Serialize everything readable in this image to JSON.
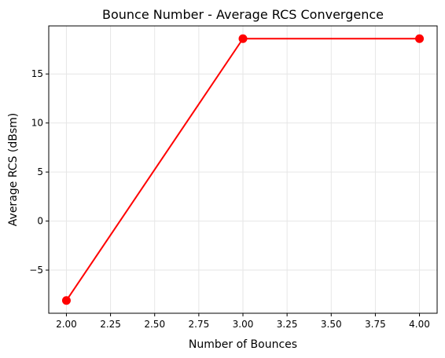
{
  "chart_data": {
    "type": "line",
    "title": "Bounce Number - Average RCS Convergence",
    "xlabel": "Number of Bounces",
    "ylabel": "Average RCS (dBsm)",
    "x": [
      2,
      3,
      4
    ],
    "series": [
      {
        "values": [
          -8.1,
          18.6,
          18.6
        ]
      }
    ],
    "xlim": [
      1.9,
      4.1
    ],
    "ylim": [
      -9.4,
      19.9
    ],
    "xticks": [
      2.0,
      2.25,
      2.5,
      2.75,
      3.0,
      3.25,
      3.5,
      3.75,
      4.0
    ],
    "xtick_labels": [
      "2.00",
      "2.25",
      "2.50",
      "2.75",
      "3.00",
      "3.25",
      "3.50",
      "3.75",
      "4.00"
    ],
    "yticks": [
      -5,
      0,
      5,
      10,
      15
    ],
    "ytick_labels": [
      "−5",
      "0",
      "5",
      "10",
      "15"
    ],
    "grid": true,
    "line_color": "#ff0000"
  }
}
